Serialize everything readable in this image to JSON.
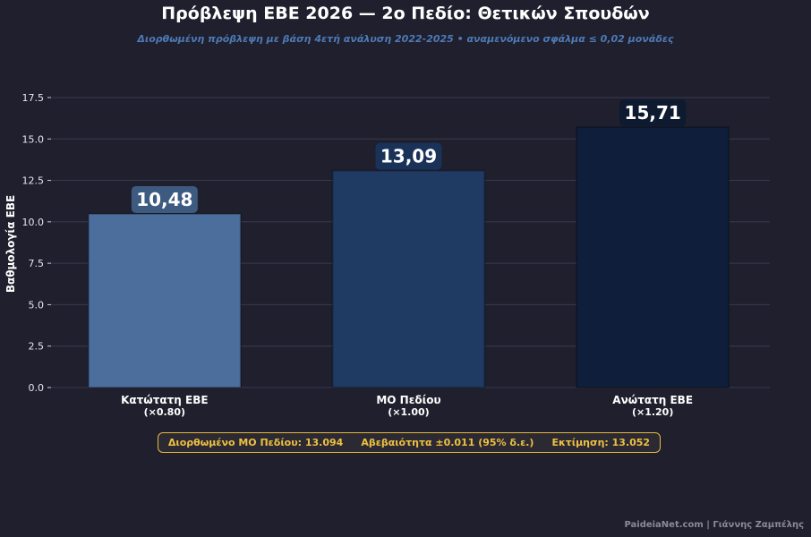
{
  "chart_data": {
    "type": "bar",
    "title": "Πρόβλεψη ΕΒΕ 2026 — 2ο Πεδίο: Θετικών Σπουδών",
    "subtitle": "Διορθωμένη πρόβλεψη με βάση 4ετή ανάλυση 2022-2025  •  αναμενόμενο σφάλμα ≤ 0,02 μονάδες",
    "ylabel": "Βαθμολογία ΕΒΕ",
    "xlabel": "",
    "ylim": [
      0,
      18.2
    ],
    "yticks": [
      "0.0",
      "2.5",
      "5.0",
      "7.5",
      "10.0",
      "12.5",
      "15.0",
      "17.5"
    ],
    "ytick_values": [
      0,
      2.5,
      5,
      7.5,
      10,
      12.5,
      15,
      17.5
    ],
    "grid": true,
    "categories": [
      "Κατώτατη ΕΒΕ",
      "ΜΟ Πεδίου",
      "Ανώτατη ΕΒΕ"
    ],
    "multipliers": [
      "(×0.80)",
      "(×1.00)",
      "(×1.20)"
    ],
    "values": [
      10.48,
      13.09,
      15.71
    ],
    "value_labels": [
      "10,48",
      "13,09",
      "15,71"
    ],
    "colors": [
      "#4b6e9c",
      "#1f3a63",
      "#0f1e3a"
    ],
    "label_box_colors": [
      "#3d5a80",
      "#1a3258",
      "#0d1a30"
    ]
  },
  "info": {
    "corrected_mean": "Διορθωμένο ΜΟ Πεδίου: 13.094",
    "uncertainty": "Αβεβαιότητα ±0.011 (95% δ.ε.)",
    "estimate": "Εκτίμηση: 13.052"
  },
  "footer": "PaideiaNet.com  |  Γιάννης Ζαμπέλης"
}
